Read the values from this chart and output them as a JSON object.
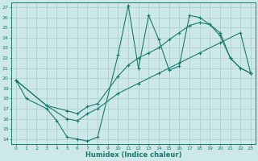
{
  "xlabel": "Humidex (Indice chaleur)",
  "xlim": [
    -0.5,
    23.5
  ],
  "ylim": [
    13.5,
    27.5
  ],
  "yticks": [
    14,
    15,
    16,
    17,
    18,
    19,
    20,
    21,
    22,
    23,
    24,
    25,
    26,
    27
  ],
  "xticks": [
    0,
    1,
    2,
    3,
    4,
    5,
    6,
    7,
    8,
    9,
    10,
    11,
    12,
    13,
    14,
    15,
    16,
    17,
    18,
    19,
    20,
    21,
    22,
    23
  ],
  "bg_color": "#cce8e8",
  "line_color": "#1a7a6e",
  "grid_color": "#b0d0d0",
  "lines": [
    {
      "x": [
        0,
        1,
        3,
        4,
        5,
        6,
        7,
        8,
        10,
        11,
        12,
        13,
        14,
        15,
        16,
        17,
        18,
        19,
        20,
        21,
        22,
        23
      ],
      "y": [
        19.8,
        18.0,
        17.0,
        15.8,
        14.2,
        14.0,
        13.8,
        14.2,
        22.3,
        27.2,
        21.0,
        26.2,
        23.8,
        20.8,
        21.2,
        26.2,
        26.0,
        25.3,
        24.2,
        22.0,
        21.0,
        20.5
      ]
    },
    {
      "x": [
        0,
        3,
        5,
        6,
        7,
        8,
        10,
        11,
        12,
        13,
        14,
        15,
        16,
        17,
        18,
        19,
        20,
        21,
        22,
        23
      ],
      "y": [
        19.8,
        17.3,
        16.8,
        16.5,
        17.2,
        17.5,
        20.2,
        21.3,
        22.0,
        22.5,
        23.0,
        23.8,
        24.5,
        25.2,
        25.5,
        25.3,
        24.5,
        22.0,
        21.0,
        20.5
      ]
    },
    {
      "x": [
        0,
        3,
        5,
        6,
        7,
        8,
        10,
        12,
        14,
        16,
        18,
        20,
        22,
        23
      ],
      "y": [
        19.8,
        17.3,
        16.0,
        15.8,
        16.5,
        17.0,
        18.5,
        19.5,
        20.5,
        21.5,
        22.5,
        23.5,
        24.5,
        20.5
      ]
    }
  ]
}
